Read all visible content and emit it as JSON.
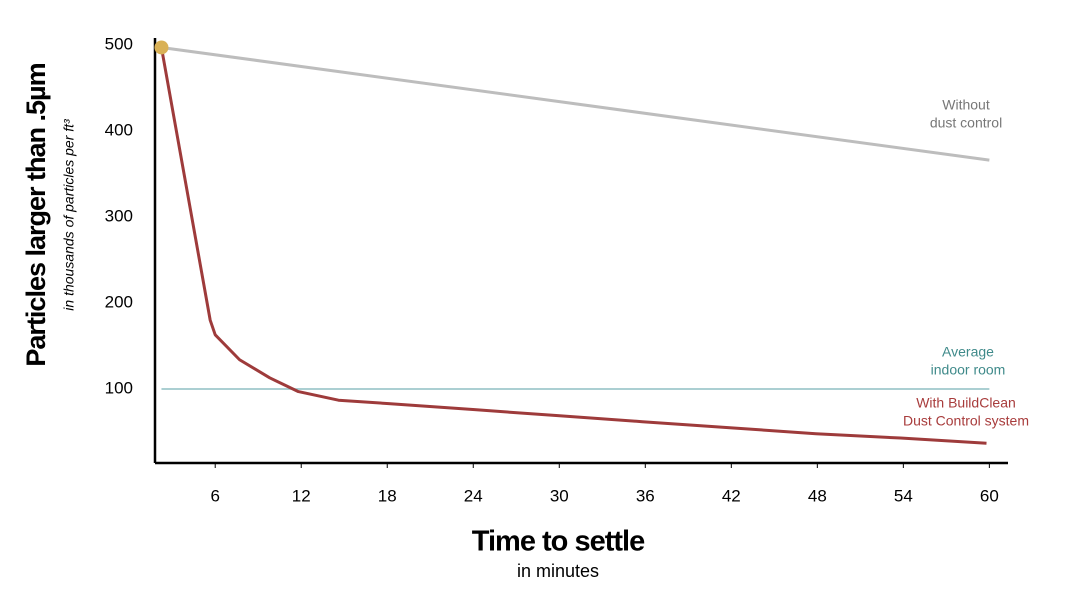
{
  "chart_data": {
    "type": "line",
    "y_title": "Particles larger than .5µm",
    "y_subtitle": "in thousands of particles per ft³",
    "x_title": "Time to settle",
    "x_subtitle": "in minutes",
    "xlim": [
      1.8,
      61.3
    ],
    "ylim": [
      14,
      508
    ],
    "xticks": [
      6,
      12,
      18,
      24,
      30,
      36,
      42,
      48,
      54,
      60
    ],
    "yticks": [
      100,
      200,
      300,
      400,
      500
    ],
    "grid": false,
    "series": [
      {
        "annotation": [
          "Without",
          "dust control"
        ],
        "color": "#bdbdbd",
        "text_color": "#777777",
        "x": [
          2.25,
          60
        ],
        "values": [
          497,
          366
        ]
      },
      {
        "annotation": [
          "Average",
          "indoor room"
        ],
        "color": "#8fbfc4",
        "text_color": "#3f8a8a",
        "x": [
          2.25,
          60
        ],
        "values": [
          100,
          100
        ]
      },
      {
        "annotation": [
          "With BuildClean",
          "Dust Control system"
        ],
        "color": "#9e3b3b",
        "text_color": "#a83c3c",
        "x": [
          2.25,
          5.65,
          6,
          7.7,
          9.8,
          11.8,
          14.6,
          18.1,
          24.1,
          29.9,
          35.8,
          41.9,
          47.9,
          53.8,
          59.8
        ],
        "values": [
          497,
          180,
          163,
          134,
          113,
          97,
          87,
          83,
          76,
          69,
          62,
          55,
          48,
          43,
          37
        ]
      }
    ],
    "start_point": {
      "x": 2.25,
      "y": 497,
      "color": "#d9b156"
    }
  }
}
